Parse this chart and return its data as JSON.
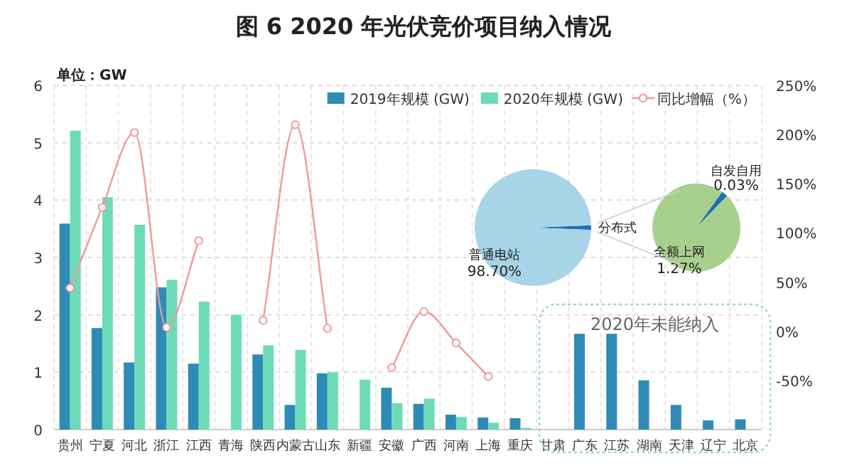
{
  "chart_data": [
    {
      "type": "bar",
      "title": "图  6 2020 年光伏竞价项目纳入情况",
      "ylabel": "单位：GW",
      "categories": [
        "贵州",
        "宁夏",
        "河北",
        "浙江",
        "江西",
        "青海",
        "陕西",
        "内蒙古",
        "山东",
        "新疆",
        "安徽",
        "广西",
        "河南",
        "上海",
        "重庆",
        "甘肃",
        "广东",
        "江苏",
        "湖南",
        "天津",
        "辽宁",
        "北京"
      ],
      "series": [
        {
          "name": "2019年规模 (GW)",
          "color": "#2e8bb5",
          "values": [
            3.59,
            1.77,
            1.17,
            2.48,
            1.15,
            null,
            1.31,
            0.43,
            0.98,
            null,
            0.73,
            0.45,
            0.26,
            0.21,
            0.2,
            null,
            1.67,
            1.67,
            0.86,
            0.43,
            0.16,
            0.18
          ]
        },
        {
          "name": "2020年规模 (GW)",
          "color": "#6ddbb8",
          "values": [
            5.21,
            4.05,
            3.57,
            2.61,
            2.23,
            2.0,
            1.47,
            1.39,
            1.0,
            0.87,
            0.46,
            0.54,
            0.22,
            0.12,
            0.03,
            null,
            null,
            null,
            null,
            null,
            null,
            null
          ]
        },
        {
          "name": "同比增幅（%）",
          "type": "line",
          "axis": "y2",
          "marker": "circle",
          "color": "#ef9a9a",
          "values": [
            44,
            126,
            202,
            4,
            92,
            null,
            11,
            210,
            3,
            null,
            -37,
            20,
            -12,
            -46,
            null,
            null,
            null,
            null,
            null,
            null,
            null,
            null
          ]
        }
      ],
      "ylim": [
        0,
        6
      ],
      "yticks": [
        0,
        1,
        2,
        3,
        4,
        5,
        6
      ],
      "y2lim": [
        -100,
        250
      ],
      "y2ticks": [
        {
          "value": -50,
          "label": "-50%"
        },
        {
          "value": 0,
          "label": "0%"
        },
        {
          "value": 50,
          "label": "50%"
        },
        {
          "value": 100,
          "label": "100%"
        },
        {
          "value": 150,
          "label": "150%"
        },
        {
          "value": 200,
          "label": "200%"
        },
        {
          "value": 250,
          "label": "250%"
        }
      ],
      "grid": true,
      "legend": "top right",
      "annotations": [
        "2020年未能纳入"
      ]
    },
    {
      "type": "pie",
      "categories": [
        "普通电站",
        "分布式"
      ],
      "values": [
        98.7,
        1.3
      ],
      "colors": [
        "#a8d4e8",
        "#1f6fb4"
      ],
      "value_labels": [
        "98.70%",
        null
      ]
    },
    {
      "type": "pie",
      "categories": [
        "自发自用",
        "全额上网"
      ],
      "values": [
        0.03,
        1.27
      ],
      "colors": [
        "#1f6fb4",
        "#a8d08d"
      ],
      "value_labels": [
        "0.03%",
        "1.27%"
      ]
    }
  ]
}
